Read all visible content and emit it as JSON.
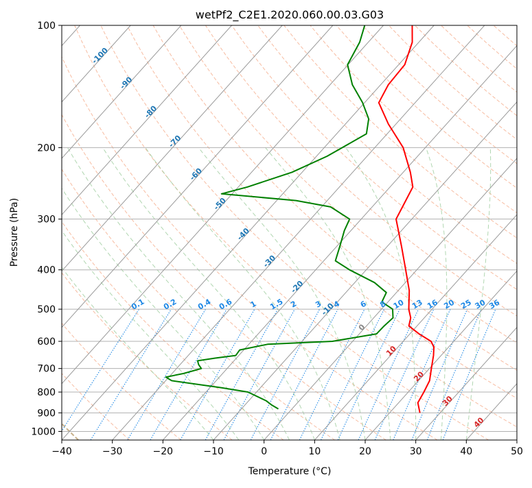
{
  "chart_data": {
    "type": "line",
    "subtype": "skew-t log-p diagram",
    "title": "wetPf2_C2E1.2020.060.00.03.G03",
    "xlabel": "Temperature (°C)",
    "ylabel": "Pressure (hPa)",
    "xlim": [
      -40,
      50
    ],
    "ylim": [
      1050,
      100
    ],
    "yscale": "log",
    "grid": true,
    "x_ticks": [
      -40,
      -30,
      -20,
      -10,
      0,
      10,
      20,
      30,
      40,
      50
    ],
    "y_ticks": [
      100,
      200,
      300,
      400,
      500,
      600,
      700,
      800,
      900,
      1000
    ],
    "series": [
      {
        "role": "temperature",
        "color": "#ff0000",
        "points": [
          {
            "p": 900,
            "t": 26.0
          },
          {
            "p": 850,
            "t": 23.8
          },
          {
            "p": 800,
            "t": 23.1
          },
          {
            "p": 750,
            "t": 22.2
          },
          {
            "p": 700,
            "t": 20.4
          },
          {
            "p": 650,
            "t": 18.5
          },
          {
            "p": 620,
            "t": 17.1
          },
          {
            "p": 600,
            "t": 15.5
          },
          {
            "p": 575,
            "t": 11.8
          },
          {
            "p": 550,
            "t": 8.4
          },
          {
            "p": 525,
            "t": 7.3
          },
          {
            "p": 500,
            "t": 5.4
          },
          {
            "p": 450,
            "t": 2.2
          },
          {
            "p": 400,
            "t": -2.2
          },
          {
            "p": 350,
            "t": -7.2
          },
          {
            "p": 300,
            "t": -13.1
          },
          {
            "p": 280,
            "t": -14.0
          },
          {
            "p": 250,
            "t": -15.5
          },
          {
            "p": 230,
            "t": -18.6
          },
          {
            "p": 200,
            "t": -24.4
          },
          {
            "p": 175,
            "t": -31.5
          },
          {
            "p": 155,
            "t": -37.2
          },
          {
            "p": 140,
            "t": -38.5
          },
          {
            "p": 125,
            "t": -38.8
          },
          {
            "p": 110,
            "t": -41.3
          },
          {
            "p": 100,
            "t": -44.3
          }
        ]
      },
      {
        "role": "dewpoint",
        "color": "#008000",
        "points": [
          {
            "p": 880,
            "t": -2.7
          },
          {
            "p": 860,
            "t": -4.8
          },
          {
            "p": 840,
            "t": -6.6
          },
          {
            "p": 800,
            "t": -11.7
          },
          {
            "p": 780,
            "t": -17.9
          },
          {
            "p": 750,
            "t": -28.8
          },
          {
            "p": 735,
            "t": -30.6
          },
          {
            "p": 720,
            "t": -27.7
          },
          {
            "p": 700,
            "t": -25.1
          },
          {
            "p": 685,
            "t": -26.3
          },
          {
            "p": 670,
            "t": -27.2
          },
          {
            "p": 660,
            "t": -24.2
          },
          {
            "p": 650,
            "t": -20.6
          },
          {
            "p": 630,
            "t": -20.8
          },
          {
            "p": 610,
            "t": -16.3
          },
          {
            "p": 600,
            "t": -4.0
          },
          {
            "p": 575,
            "t": 3.4
          },
          {
            "p": 550,
            "t": 3.5
          },
          {
            "p": 525,
            "t": 3.8
          },
          {
            "p": 500,
            "t": 2.2
          },
          {
            "p": 480,
            "t": -1.2
          },
          {
            "p": 455,
            "t": -2.0
          },
          {
            "p": 430,
            "t": -6.1
          },
          {
            "p": 400,
            "t": -13.3
          },
          {
            "p": 380,
            "t": -17.7
          },
          {
            "p": 350,
            "t": -19.4
          },
          {
            "p": 320,
            "t": -21.3
          },
          {
            "p": 300,
            "t": -22.3
          },
          {
            "p": 280,
            "t": -28.2
          },
          {
            "p": 270,
            "t": -36.2
          },
          {
            "p": 260,
            "t": -52.1
          },
          {
            "p": 250,
            "t": -48.2
          },
          {
            "p": 230,
            "t": -42.0
          },
          {
            "p": 210,
            "t": -37.9
          },
          {
            "p": 185,
            "t": -34.1
          },
          {
            "p": 170,
            "t": -36.3
          },
          {
            "p": 155,
            "t": -40.4
          },
          {
            "p": 140,
            "t": -45.6
          },
          {
            "p": 125,
            "t": -50.1
          },
          {
            "p": 110,
            "t": -51.7
          },
          {
            "p": 100,
            "t": -53.7
          }
        ]
      }
    ],
    "isotherms": {
      "color": "#888888",
      "labeled": [
        {
          "t": -100,
          "label": "-100"
        },
        {
          "t": -90,
          "label": "-90"
        },
        {
          "t": -80,
          "label": "-80"
        },
        {
          "t": -70,
          "label": "-70"
        },
        {
          "t": -60,
          "label": "-60"
        },
        {
          "t": -50,
          "label": "-50"
        },
        {
          "t": -40,
          "label": "-40"
        },
        {
          "t": -30,
          "label": "-30"
        },
        {
          "t": -20,
          "label": "-20"
        },
        {
          "t": -10,
          "label": "-10"
        },
        {
          "t": 0,
          "label": "0"
        },
        {
          "t": 10,
          "label": "10"
        },
        {
          "t": 20,
          "label": "20"
        },
        {
          "t": 30,
          "label": "30"
        },
        {
          "t": 40,
          "label": "40"
        }
      ]
    },
    "mixing_ratio_lines": {
      "color": "#1e88e5",
      "labels": [
        "0.1",
        "0.2",
        "0.4",
        "0.6",
        "1",
        "1.5",
        "2",
        "3",
        "4",
        "6",
        "8",
        "10",
        "13",
        "16",
        "20",
        "25",
        "30",
        "36"
      ],
      "values": [
        0.1,
        0.2,
        0.4,
        0.6,
        1,
        1.5,
        2,
        3,
        4,
        6,
        8,
        10,
        13,
        16,
        20,
        25,
        30,
        36
      ]
    },
    "colors": {
      "isotherm_label_blue": "#1f77b4",
      "isotherm_label_gray": "#888888",
      "isotherm_label_red": "#d62728",
      "dry_adiabat": "#f4a582",
      "moist_adiabat": "#9ccc9c",
      "frame_boundary_adiabat": "#c8b28c"
    }
  }
}
